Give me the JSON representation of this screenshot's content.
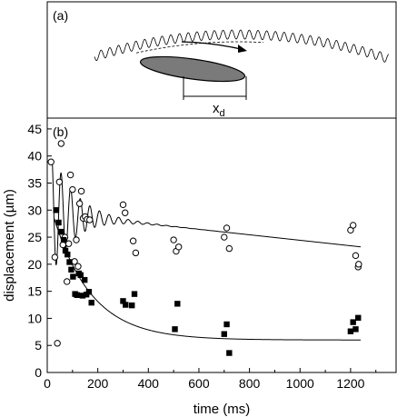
{
  "panel_a": {
    "label": "(a)",
    "displacement_label": "x",
    "displacement_subscript": "d"
  },
  "chart_data": {
    "type": "scatter",
    "panel_label": "(b)",
    "xlabel": "time (ms)",
    "ylabel": "displacement (µm)",
    "xlim": [
      0,
      1380
    ],
    "ylim": [
      0,
      47
    ],
    "xticks": [
      0,
      200,
      400,
      600,
      800,
      1000,
      1200
    ],
    "yticks": [
      0,
      5,
      10,
      15,
      20,
      25,
      30,
      35,
      40,
      45
    ],
    "grid": false,
    "legend": "none",
    "series": [
      {
        "marker": "open-circle",
        "x": [
          15,
          30,
          40,
          48,
          55,
          62,
          70,
          78,
          85,
          92,
          100,
          108,
          115,
          122,
          128,
          135,
          142,
          150,
          158,
          168,
          300,
          308,
          340,
          350,
          500,
          510,
          520,
          700,
          710,
          720,
          1200,
          1210,
          1220,
          1230,
          1232
        ],
        "y": [
          38.9,
          21.3,
          5.4,
          35.2,
          42.3,
          23.6,
          25.0,
          16.8,
          23.8,
          36.5,
          33.8,
          20.5,
          24.5,
          19.6,
          31.2,
          33.5,
          28.5,
          28.8,
          28.3,
          28.2,
          31.0,
          29.5,
          24.3,
          22.1,
          24.5,
          22.4,
          23.2,
          25.0,
          26.7,
          22.9,
          26.3,
          27.2,
          21.6,
          19.5,
          20.0
        ]
      },
      {
        "marker": "filled-square",
        "x": [
          35,
          45,
          55,
          65,
          72,
          80,
          88,
          95,
          102,
          110,
          118,
          125,
          132,
          140,
          148,
          155,
          165,
          175,
          300,
          310,
          335,
          345,
          505,
          515,
          700,
          710,
          720,
          1200,
          1210,
          1220,
          1230
        ],
        "y": [
          30.0,
          27.7,
          26.0,
          24.5,
          22.5,
          21.8,
          20.4,
          19.0,
          17.7,
          14.5,
          14.3,
          18.3,
          18.0,
          14.2,
          17.1,
          14.4,
          14.9,
          12.9,
          13.2,
          12.5,
          12.4,
          14.5,
          8.0,
          12.7,
          7.1,
          8.9,
          3.6,
          7.6,
          9.3,
          8.0,
          10.1
        ]
      }
    ],
    "fit_curves": [
      {
        "form": "damped-oscillation",
        "baseline_start": 29.5,
        "baseline_end": 22.5,
        "amplitude": 14.0,
        "decay_ms": 90,
        "period_ms": 38
      },
      {
        "form": "exponential-decay",
        "start": 33.0,
        "end": 6.0,
        "tau_ms": 150
      }
    ]
  }
}
